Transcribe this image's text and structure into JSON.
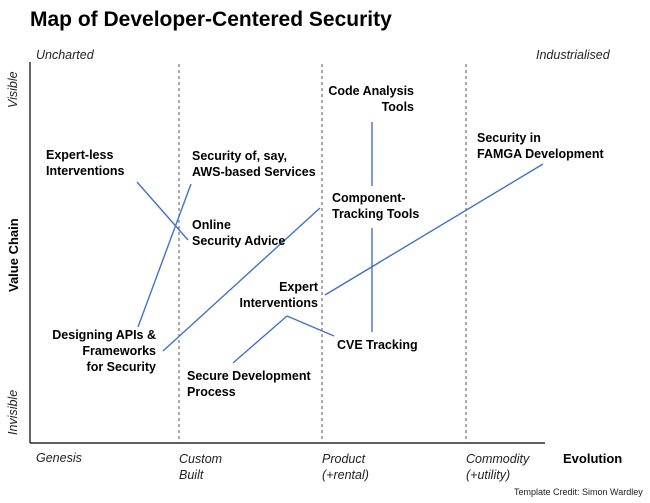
{
  "title": "Map of Developer-Centered Security",
  "corners": {
    "top_left": "Uncharted",
    "top_right": "Industrialised"
  },
  "y_axis": {
    "label": "Value Chain",
    "top": "Visible",
    "bottom": "Invisible"
  },
  "x_axis": {
    "label": "Evolution",
    "stages": [
      {
        "line1": "Genesis",
        "line2": ""
      },
      {
        "line1": "Custom",
        "line2": "Built"
      },
      {
        "line1": "Product",
        "line2": "(+rental)"
      },
      {
        "line1": "Commodity",
        "line2": "(+utility)"
      }
    ]
  },
  "nodes": {
    "code_analysis": [
      "Code Analysis",
      "Tools"
    ],
    "security_famga": [
      "Security in",
      "FAMGA Development"
    ],
    "expertless": [
      "Expert-less",
      "Interventions"
    ],
    "security_aws": [
      "Security of, say,",
      "AWS-based Services"
    ],
    "component_tracking": [
      "Component-",
      "Tracking Tools"
    ],
    "online_advice": [
      "Online",
      "Security Advice"
    ],
    "expert_interventions": [
      "Expert",
      "Interventions"
    ],
    "designing_apis": [
      "Designing APIs &",
      "Frameworks",
      "for Security"
    ],
    "cve_tracking": [
      "CVE Tracking"
    ],
    "secure_dev": [
      "Secure Development",
      "Process"
    ]
  },
  "credit": "Template Credit: Simon Wardley",
  "colors": {
    "link": "#4472C4",
    "axis": "#000000",
    "divider": "#555555"
  }
}
